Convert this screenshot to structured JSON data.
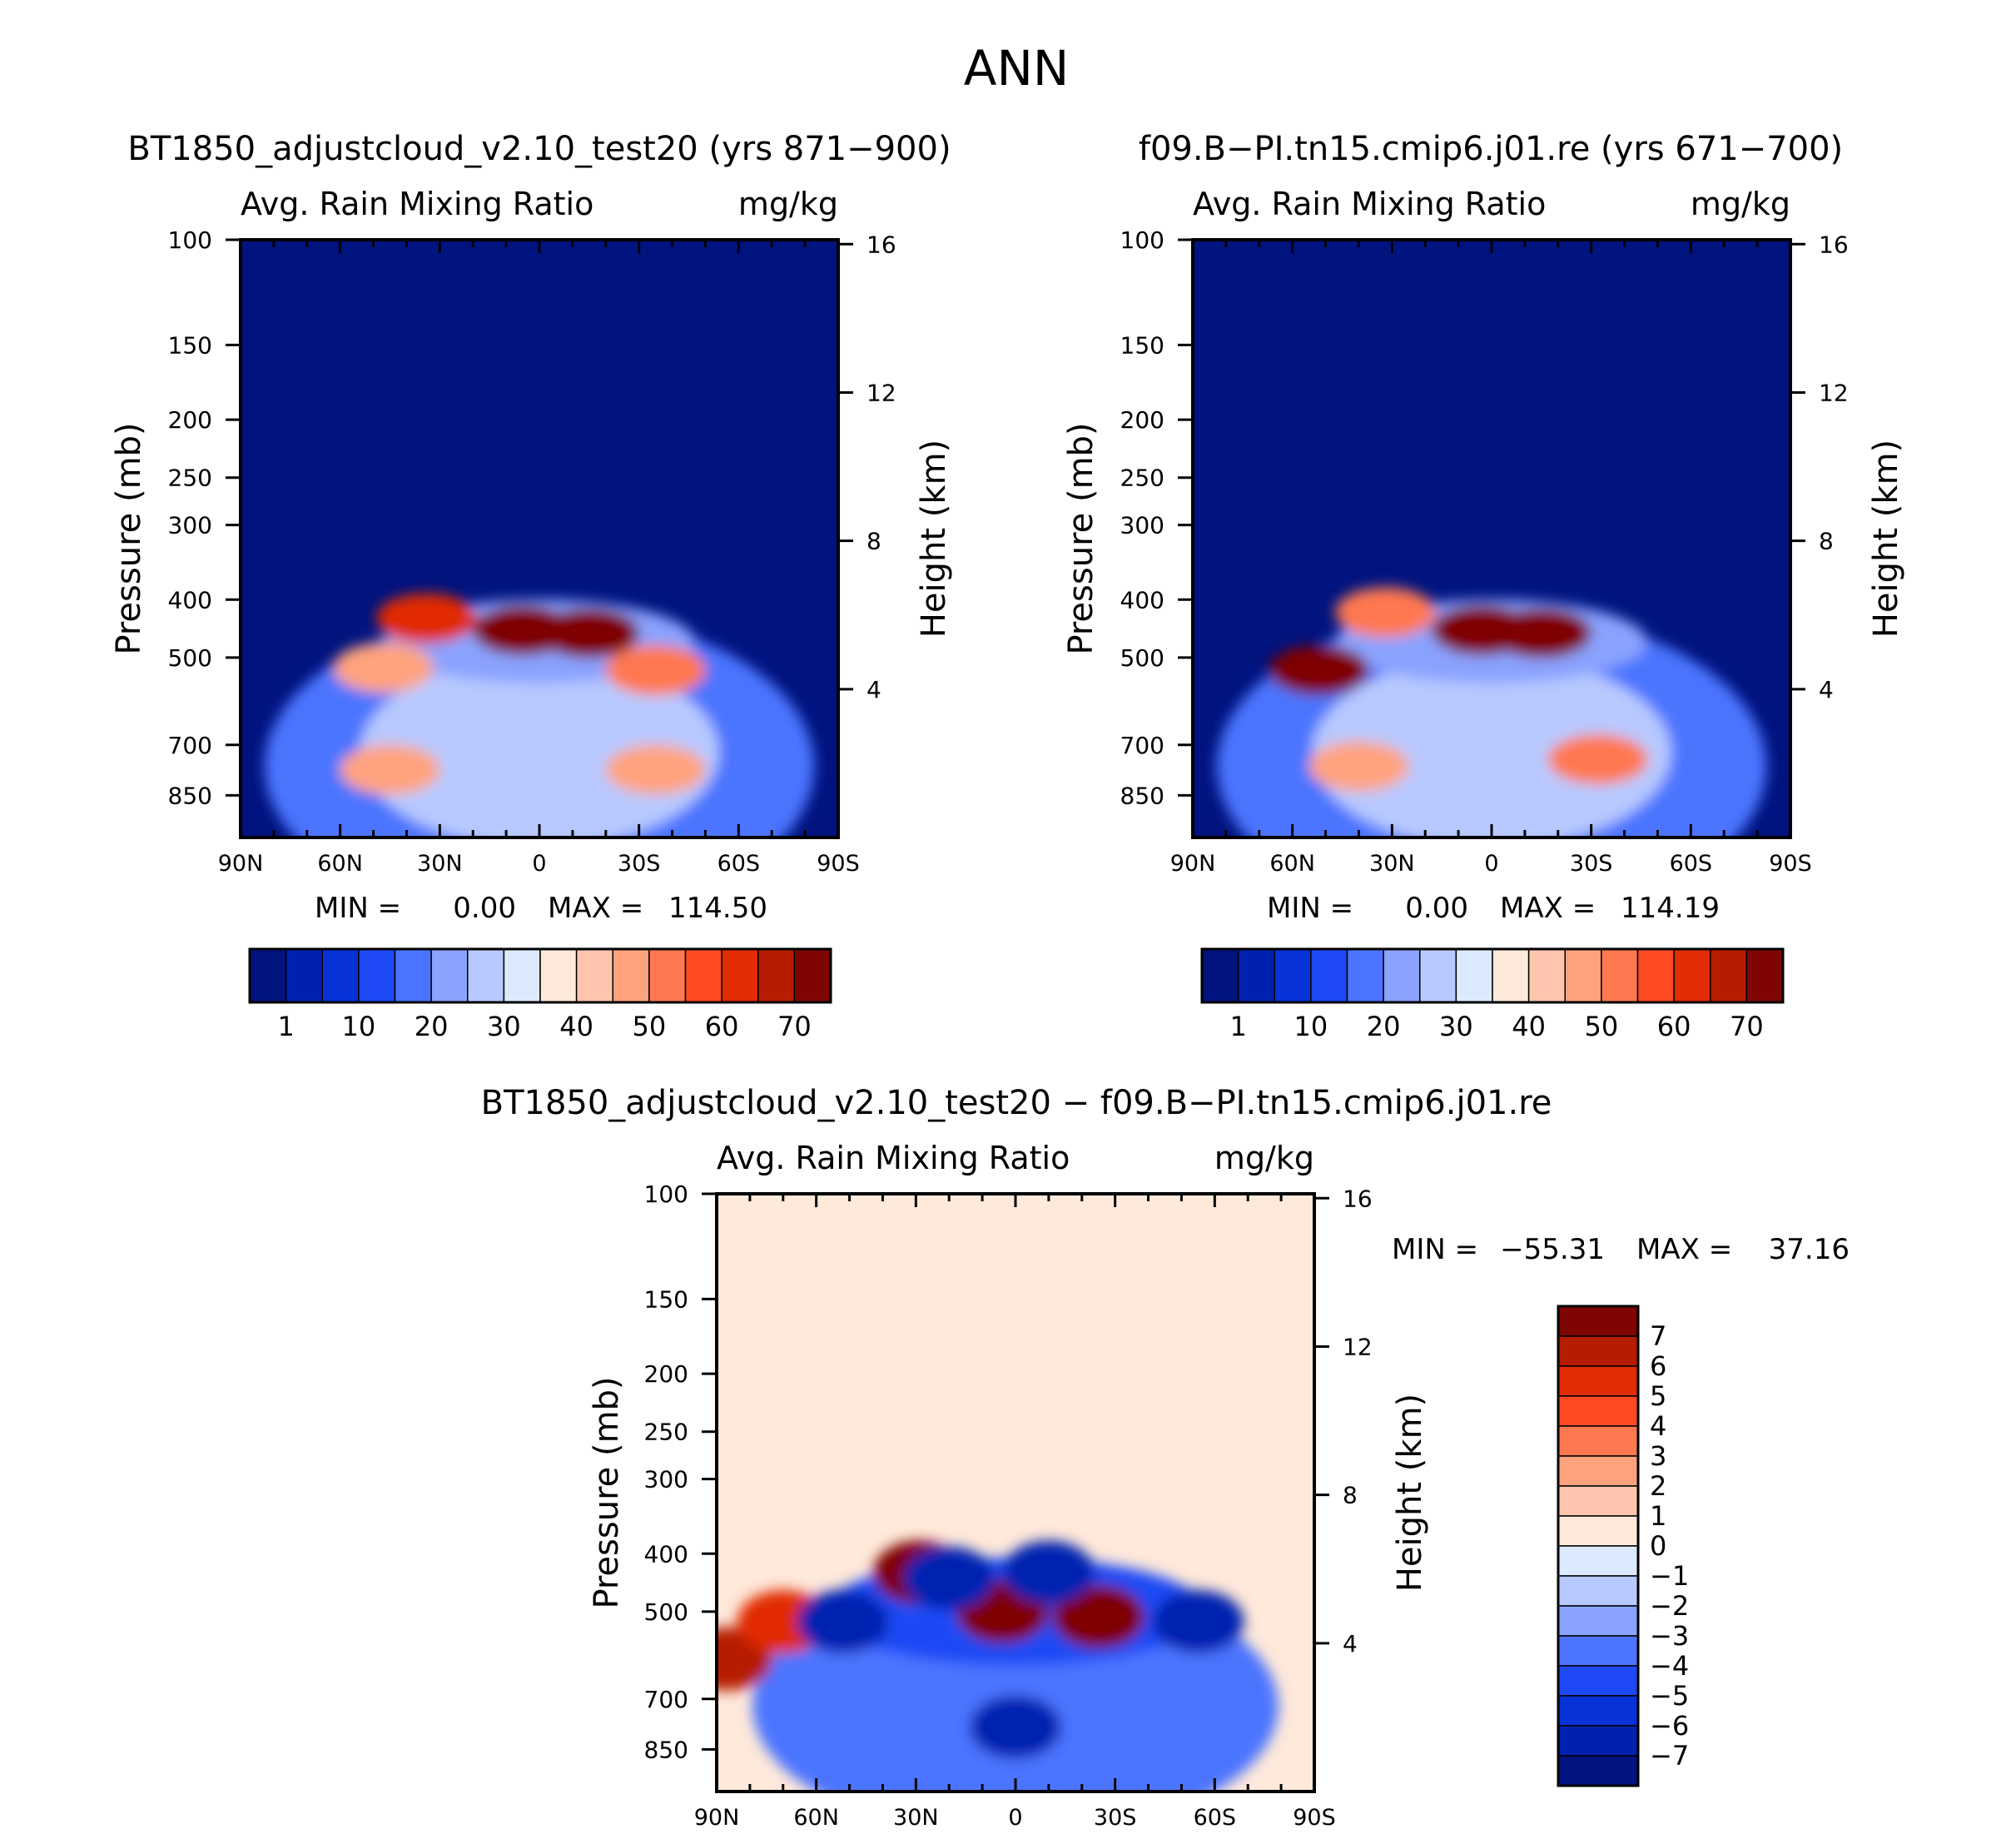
{
  "page_title": "ANN",
  "chart_data": [
    {
      "id": "p1",
      "type": "heatmap",
      "title": "BT1850_adjustcloud_v2.10_test20 (yrs 871-900)",
      "variable_label": "Avg. Rain Mixing Ratio",
      "units_label": "mg/kg",
      "ylabel": "Pressure (mb)",
      "y2label": "Height (km)",
      "x_ticks": [
        "90N",
        "60N",
        "30N",
        "0",
        "30S",
        "60S",
        "90S"
      ],
      "y_ticks": [
        100,
        150,
        200,
        250,
        300,
        400,
        500,
        700,
        850
      ],
      "y2_ticks": [
        16,
        12,
        8,
        4
      ],
      "min_label": "MIN =",
      "min_value": "0.00",
      "max_label": "MAX =",
      "max_value": "114.50",
      "colorbar": {
        "orientation": "horizontal",
        "labels": [
          "1",
          "10",
          "20",
          "30",
          "40",
          "50",
          "60",
          "70"
        ],
        "colors": [
          "#00137f",
          "#0021b0",
          "#0632d8",
          "#1f49f5",
          "#4c74ff",
          "#8aa3ff",
          "#b8c9ff",
          "#dceaff",
          "#ffe9da",
          "#ffc6ad",
          "#ffa37e",
          "#ff7850",
          "#ff4b24",
          "#e12c05",
          "#b51d00",
          "#7e0502"
        ]
      },
      "features": [
        {
          "lat": 34,
          "p": 430,
          "v": 60
        },
        {
          "lat": 5,
          "p": 450,
          "v": 100
        },
        {
          "lat": -15,
          "p": 455,
          "v": 70
        },
        {
          "lat": 47,
          "p": 520,
          "v": 45
        },
        {
          "lat": -35,
          "p": 525,
          "v": 50
        },
        {
          "lat": 45,
          "p": 770,
          "v": 45
        },
        {
          "lat": -35,
          "p": 770,
          "v": 45
        }
      ]
    },
    {
      "id": "p2",
      "type": "heatmap",
      "title": "f09.B-PI.tn15.cmip6.j01.re (yrs 671-700)",
      "variable_label": "Avg. Rain Mixing Ratio",
      "units_label": "mg/kg",
      "ylabel": "Pressure (mb)",
      "y2label": "Height (km)",
      "x_ticks": [
        "90N",
        "60N",
        "30N",
        "0",
        "30S",
        "60S",
        "90S"
      ],
      "y_ticks": [
        100,
        150,
        200,
        250,
        300,
        400,
        500,
        700,
        850
      ],
      "y2_ticks": [
        16,
        12,
        8,
        4
      ],
      "min_label": "MIN =",
      "min_value": "0.00",
      "max_label": "MAX =",
      "max_value": "114.19",
      "colorbar": {
        "orientation": "horizontal",
        "labels": [
          "1",
          "10",
          "20",
          "30",
          "40",
          "50",
          "60",
          "70"
        ],
        "colors": [
          "#00137f",
          "#0021b0",
          "#0632d8",
          "#1f49f5",
          "#4c74ff",
          "#8aa3ff",
          "#b8c9ff",
          "#dceaff",
          "#ffe9da",
          "#ffc6ad",
          "#ffa37e",
          "#ff7850",
          "#ff4b24",
          "#e12c05",
          "#b51d00",
          "#7e0502"
        ]
      },
      "features": [
        {
          "lat": 32,
          "p": 420,
          "v": 50
        },
        {
          "lat": 3,
          "p": 450,
          "v": 105
        },
        {
          "lat": -15,
          "p": 455,
          "v": 70
        },
        {
          "lat": 52,
          "p": 525,
          "v": 105
        },
        {
          "lat": 40,
          "p": 760,
          "v": 45
        },
        {
          "lat": -32,
          "p": 740,
          "v": 50
        }
      ]
    },
    {
      "id": "p3",
      "type": "heatmap",
      "title": "BT1850_adjustcloud_v2.10_test20 - f09.B-PI.tn15.cmip6.j01.re",
      "variable_label": "Avg. Rain Mixing Ratio",
      "units_label": "mg/kg",
      "ylabel": "Pressure (mb)",
      "y2label": "Height (km)",
      "x_ticks": [
        "90N",
        "60N",
        "30N",
        "0",
        "30S",
        "60S",
        "90S"
      ],
      "y_ticks": [
        100,
        150,
        200,
        250,
        300,
        400,
        500,
        700,
        850
      ],
      "y2_ticks": [
        16,
        12,
        8,
        4
      ],
      "min_label": "MIN =",
      "min_value": "-55.31",
      "max_label": "MAX =",
      "max_value": "37.16",
      "colorbar": {
        "orientation": "vertical",
        "labels": [
          "7",
          "6",
          "5",
          "4",
          "3",
          "2",
          "1",
          "0",
          "-1",
          "-2",
          "-3",
          "-4",
          "-5",
          "-6",
          "-7"
        ],
        "colors": [
          "#7e0502",
          "#b51d00",
          "#e12c05",
          "#ff4b24",
          "#ff7850",
          "#ffa37e",
          "#ffc6ad",
          "#ffe9da",
          "#dceaff",
          "#b8c9ff",
          "#8aa3ff",
          "#4c74ff",
          "#1f49f5",
          "#0632d8",
          "#0021b0",
          "#00137f"
        ]
      },
      "features": [
        {
          "lat": 29,
          "p": 430,
          "v": 7
        },
        {
          "lat": 4,
          "p": 500,
          "v": 7
        },
        {
          "lat": -25,
          "p": 510,
          "v": 7
        },
        {
          "lat": 87,
          "p": 600,
          "v": 6
        },
        {
          "lat": 70,
          "p": 520,
          "v": 5
        },
        {
          "lat": 52,
          "p": 520,
          "v": -7
        },
        {
          "lat": 20,
          "p": 440,
          "v": -7
        },
        {
          "lat": -10,
          "p": 430,
          "v": -7
        },
        {
          "lat": -55,
          "p": 520,
          "v": -7
        },
        {
          "lat": 0,
          "p": 780,
          "v": -7
        }
      ]
    }
  ]
}
